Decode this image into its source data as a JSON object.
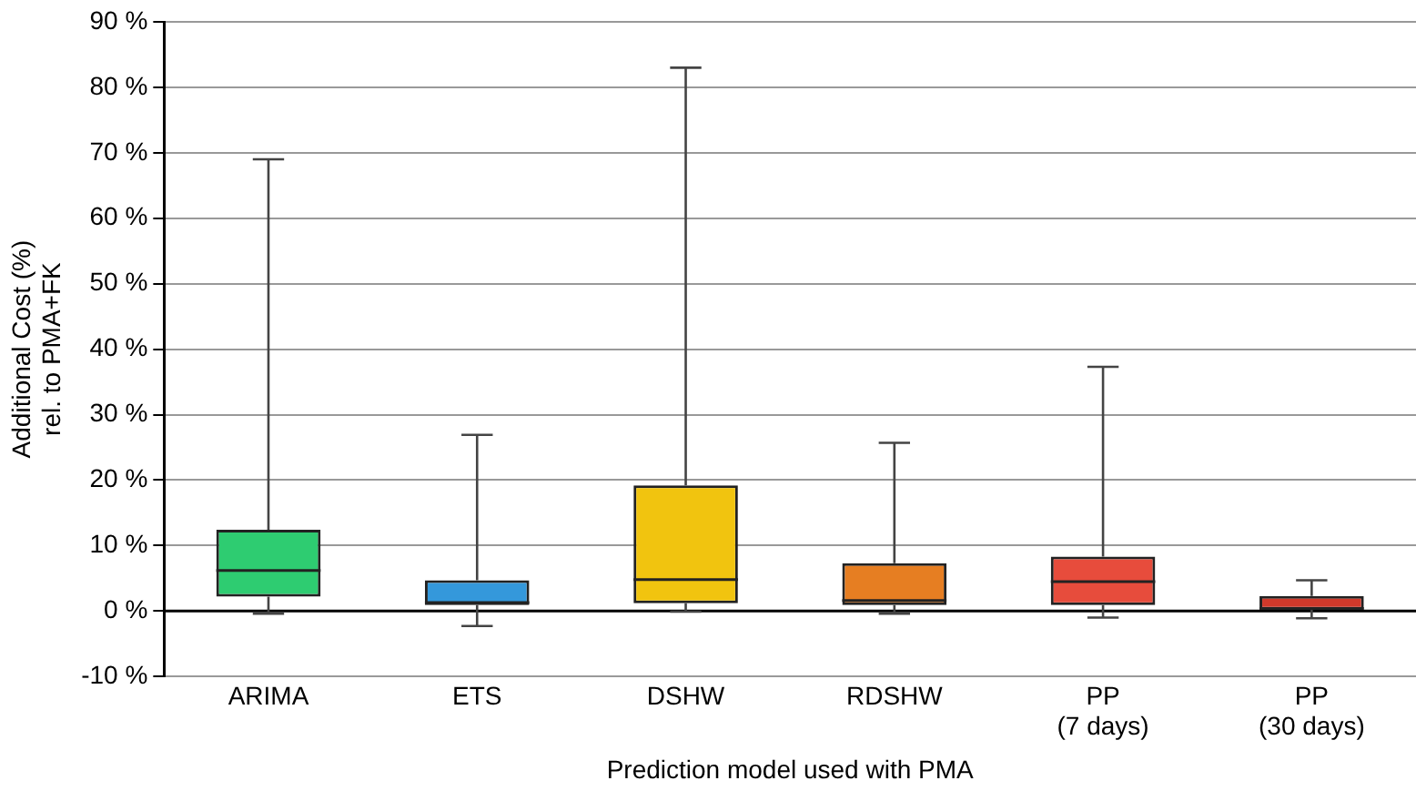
{
  "chart_data": {
    "type": "box",
    "xlabel": "Prediction model used with PMA",
    "ylabel": "Additional Cost (%)\nrel. to PMA+FK",
    "categories": [
      "ARIMA",
      "ETS",
      "DSHW",
      "RDSHW",
      "PP\n(7 days)",
      "PP\n(30 days)"
    ],
    "colors": [
      "#2ecc71",
      "#3498db",
      "#f1c40f",
      "#e67e22",
      "#e74c3c",
      "#d0392b"
    ],
    "boxes": [
      {
        "low": -0.4,
        "q1": 2.2,
        "median": 6.2,
        "q3": 12.4,
        "high": 69
      },
      {
        "low": -2.3,
        "q1": 0.9,
        "median": 1.3,
        "q3": 4.7,
        "high": 26.9
      },
      {
        "low": -0.1,
        "q1": 1.2,
        "median": 4.8,
        "q3": 19.2,
        "high": 83
      },
      {
        "low": -0.4,
        "q1": 0.9,
        "median": 1.6,
        "q3": 7.3,
        "high": 25.7
      },
      {
        "low": -1,
        "q1": 0.9,
        "median": 4.5,
        "q3": 8.3,
        "high": 37.3
      },
      {
        "low": -1.1,
        "q1": 0.2,
        "median": 0.4,
        "q3": 2.3,
        "high": 4.7
      }
    ],
    "ylim": [
      -10,
      90
    ],
    "yticks": [
      {
        "value": -10,
        "label": "-10 %"
      },
      {
        "value": 0,
        "label": "0 %"
      },
      {
        "value": 10,
        "label": "10 %"
      },
      {
        "value": 20,
        "label": "20 %"
      },
      {
        "value": 30,
        "label": "30 %"
      },
      {
        "value": 40,
        "label": "40 %"
      },
      {
        "value": 50,
        "label": "50 %"
      },
      {
        "value": 60,
        "label": "60 %"
      },
      {
        "value": 70,
        "label": "70 %"
      },
      {
        "value": 80,
        "label": "80 %"
      },
      {
        "value": 90,
        "label": "90 %"
      }
    ],
    "grid": "y",
    "ref_lines": [
      {
        "axis": "y",
        "value": 0,
        "color": "#000000"
      }
    ]
  }
}
